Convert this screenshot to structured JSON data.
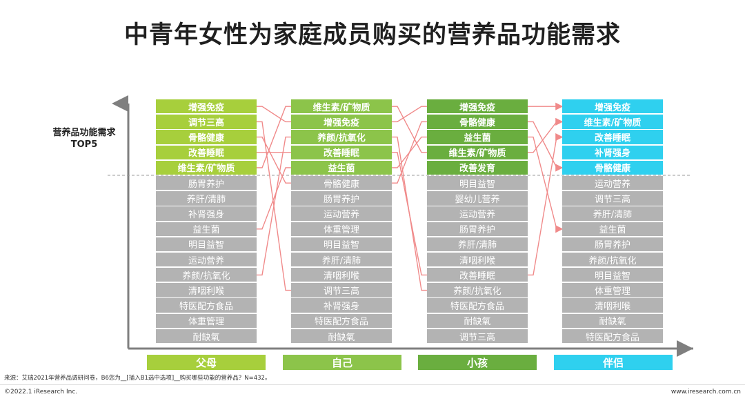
{
  "title": "中青年女性为家庭成员购买的营养品功能需求",
  "y_axis_label_line1": "营养品功能需求",
  "y_axis_label_line2": "TOP5",
  "colors": {
    "parents": "#a7cf3c",
    "self": "#8cc44a",
    "children": "#6aae3f",
    "partner": "#2fd0ef",
    "others": "#b3b3b3",
    "connector": "#f08a8a",
    "axis": "#7f7f7f"
  },
  "columns": [
    {
      "category": "父母",
      "color_key": "parents",
      "items": [
        "增强免疫",
        "调节三高",
        "骨骼健康",
        "改善睡眠",
        "维生素/矿物质",
        "肠胃养护",
        "养肝/清肺",
        "补肾强身",
        "益生菌",
        "明目益智",
        "运动营养",
        "养颜/抗氧化",
        "清咽利喉",
        "特医配方食品",
        "体重管理",
        "耐缺氧"
      ]
    },
    {
      "category": "自己",
      "color_key": "self",
      "items": [
        "维生素/矿物质",
        "增强免疫",
        "养颜/抗氧化",
        "改善睡眠",
        "益生菌",
        "骨骼健康",
        "肠胃养护",
        "运动营养",
        "体重管理",
        "明目益智",
        "养肝/清肺",
        "清咽利喉",
        "调节三高",
        "补肾强身",
        "特医配方食品",
        "耐缺氧"
      ]
    },
    {
      "category": "小孩",
      "color_key": "children",
      "items": [
        "增强免疫",
        "骨骼健康",
        "益生菌",
        "维生素/矿物质",
        "改善发育",
        "明目益智",
        "婴幼儿营养",
        "运动营养",
        "肠胃养护",
        "养肝/清肺",
        "清咽利喉",
        "改善睡眠",
        "养颜/抗氧化",
        "特医配方食品",
        "耐缺氧",
        "调节三高"
      ]
    },
    {
      "category": "伴侣",
      "color_key": "partner",
      "items": [
        "增强免疫",
        "维生素/矿物质",
        "改善睡眠",
        "补肾强身",
        "骨骼健康",
        "运动营养",
        "调节三高",
        "养肝/清肺",
        "益生菌",
        "肠胃养护",
        "养颜/抗氧化",
        "明目益智",
        "体重管理",
        "清咽利喉",
        "耐缺氧",
        "特医配方食品"
      ]
    }
  ],
  "source": "来源：艾瑞2021年营养品调研问卷，B6您为__[插入B1选中选项]__购买哪些功能的营养品？N=432。",
  "copyright": "©2022.1 iResearch Inc.",
  "site": "www.iresearch.com.cn"
}
